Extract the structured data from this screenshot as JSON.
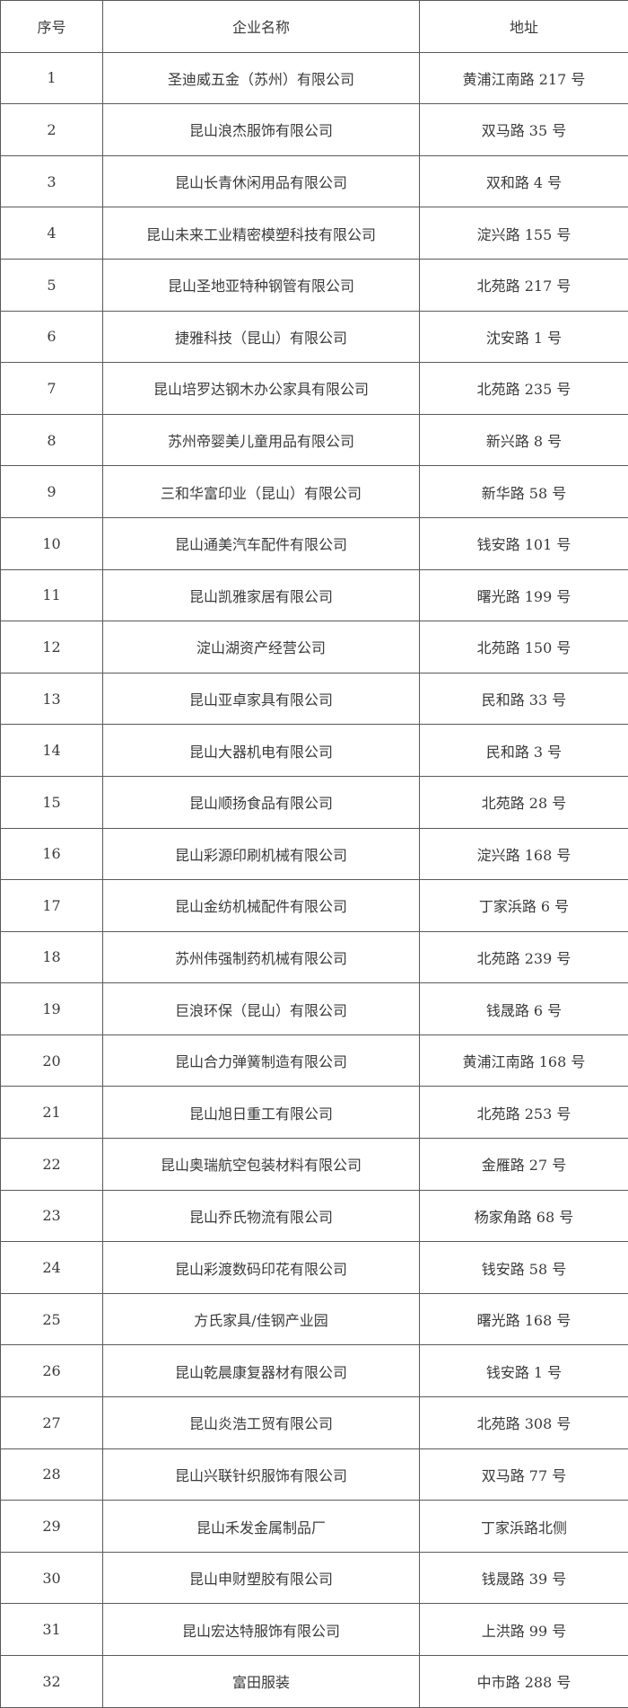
{
  "table": {
    "headers": [
      "序号",
      "企业名称",
      "地址"
    ],
    "rows": [
      [
        "1",
        "圣迪威五金（苏州）有限公司",
        "黄浦江南路 217 号"
      ],
      [
        "2",
        "昆山浪杰服饰有限公司",
        "双马路 35 号"
      ],
      [
        "3",
        "昆山长青休闲用品有限公司",
        "双和路 4 号"
      ],
      [
        "4",
        "昆山未来工业精密模塑科技有限公司",
        "淀兴路 155 号"
      ],
      [
        "5",
        "昆山圣地亚特种钢管有限公司",
        "北苑路 217 号"
      ],
      [
        "6",
        "捷雅科技（昆山）有限公司",
        "沈安路 1 号"
      ],
      [
        "7",
        "昆山培罗达钢木办公家具有限公司",
        "北苑路 235 号"
      ],
      [
        "8",
        "苏州帝婴美儿童用品有限公司",
        "新兴路 8 号"
      ],
      [
        "9",
        "三和华富印业（昆山）有限公司",
        "新华路 58 号"
      ],
      [
        "10",
        "昆山通美汽车配件有限公司",
        "钱安路 101 号"
      ],
      [
        "11",
        "昆山凯雅家居有限公司",
        "曙光路 199 号"
      ],
      [
        "12",
        "淀山湖资产经营公司",
        "北苑路 150 号"
      ],
      [
        "13",
        "昆山亚卓家具有限公司",
        "民和路 33 号"
      ],
      [
        "14",
        "昆山大器机电有限公司",
        "民和路 3 号"
      ],
      [
        "15",
        "昆山顺扬食品有限公司",
        "北苑路 28 号"
      ],
      [
        "16",
        "昆山彩源印刷机械有限公司",
        "淀兴路 168 号"
      ],
      [
        "17",
        "昆山金纺机械配件有限公司",
        "丁家浜路 6 号"
      ],
      [
        "18",
        "苏州伟强制药机械有限公司",
        "北苑路 239 号"
      ],
      [
        "19",
        "巨浪环保（昆山）有限公司",
        "钱晟路 6 号"
      ],
      [
        "20",
        "昆山合力弹簧制造有限公司",
        "黄浦江南路 168 号"
      ],
      [
        "21",
        "昆山旭日重工有限公司",
        "北苑路 253 号"
      ],
      [
        "22",
        "昆山奥瑞航空包装材料有限公司",
        "金雁路 27 号"
      ],
      [
        "23",
        "昆山乔氏物流有限公司",
        "杨家角路 68 号"
      ],
      [
        "24",
        "昆山彩渡数码印花有限公司",
        "钱安路 58 号"
      ],
      [
        "25",
        "方氏家具/佳钢产业园",
        "曙光路 168 号"
      ],
      [
        "26",
        "昆山乾晨康复器材有限公司",
        "钱安路 1 号"
      ],
      [
        "27",
        "昆山炎浩工贸有限公司",
        "北苑路 308 号"
      ],
      [
        "28",
        "昆山兴联针织服饰有限公司",
        "双马路 77 号"
      ],
      [
        "29",
        "昆山禾发金属制品厂",
        "丁家浜路北侧"
      ],
      [
        "30",
        "昆山申财塑胶有限公司",
        "钱晟路 39 号"
      ],
      [
        "31",
        "昆山宏达特服饰有限公司",
        "上洪路 99 号"
      ],
      [
        "32",
        "富田服装",
        "中市路 288 号"
      ]
    ]
  }
}
